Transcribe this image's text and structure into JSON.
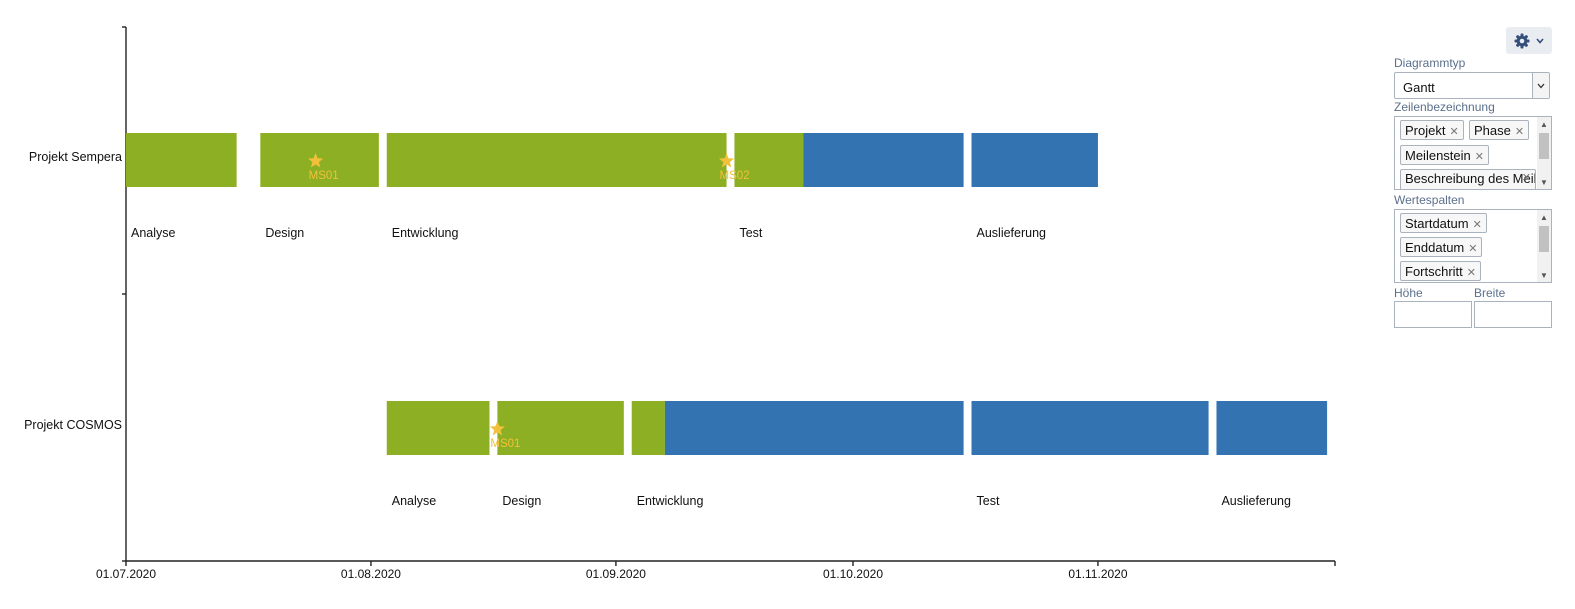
{
  "chart_data": {
    "type": "gantt",
    "x_axis": {
      "type": "date",
      "range": [
        "2020-07-01",
        "2020-12-01"
      ],
      "tick_labels": [
        "01.07.2020",
        "01.08.2020",
        "01.09.2020",
        "01.10.2020",
        "01.11.2020"
      ],
      "tick_dates": [
        "2020-07-01",
        "2020-08-01",
        "2020-09-01",
        "2020-10-01",
        "2020-11-01"
      ]
    },
    "categories": [
      "Projekt Sempera",
      "Projekt COSMOS"
    ],
    "colors": {
      "completed": "#8daf23",
      "remaining": "#3473b1",
      "milestone": "#f2c13b"
    },
    "series": [
      {
        "row": "Projekt Sempera",
        "phases": [
          {
            "label": "Analyse",
            "start": "2020-07-01",
            "end": "2020-07-15",
            "progress": 1.0
          },
          {
            "label": "Design",
            "start": "2020-07-18",
            "end": "2020-08-02",
            "progress": 1.0
          },
          {
            "label": "Entwicklung",
            "start": "2020-08-03",
            "end": "2020-09-15",
            "progress": 1.0
          },
          {
            "label": "Test",
            "start": "2020-09-16",
            "end": "2020-10-15",
            "progress": 0.3
          },
          {
            "label": "Auslieferung",
            "start": "2020-10-16",
            "end": "2020-11-01",
            "progress": 0.0
          }
        ],
        "milestones": [
          {
            "label": "MS01",
            "date": "2020-07-25"
          },
          {
            "label": "MS02",
            "date": "2020-09-15"
          }
        ]
      },
      {
        "row": "Projekt COSMOS",
        "phases": [
          {
            "label": "Analyse",
            "start": "2020-08-03",
            "end": "2020-08-16",
            "progress": 1.0
          },
          {
            "label": "Design",
            "start": "2020-08-17",
            "end": "2020-09-02",
            "progress": 1.0
          },
          {
            "label": "Entwicklung",
            "start": "2020-09-03",
            "end": "2020-10-15",
            "progress": 0.1
          },
          {
            "label": "Test",
            "start": "2020-10-16",
            "end": "2020-11-15",
            "progress": 0.0
          },
          {
            "label": "Auslieferung",
            "start": "2020-11-16",
            "end": "2020-11-30",
            "progress": 0.0
          }
        ],
        "milestones": [
          {
            "label": "MS01",
            "date": "2020-08-17"
          }
        ]
      }
    ]
  },
  "settings_panel": {
    "gear_icon": "gear-icon",
    "chevron_icon": "chevron-down-icon",
    "chart_type_label": "Diagrammtyp",
    "chart_type_value": "Gantt",
    "row_label_field_label": "Zeilenbezeichnung",
    "row_label_tags": [
      "Projekt",
      "Phase",
      "Meilenstein",
      "Beschreibung des Meilensteins"
    ],
    "value_columns_label": "Wertespalten",
    "value_column_tags": [
      "Startdatum",
      "Enddatum",
      "Fortschritt"
    ],
    "height_label": "Höhe",
    "height_value": "",
    "width_label": "Breite",
    "width_value": ""
  }
}
